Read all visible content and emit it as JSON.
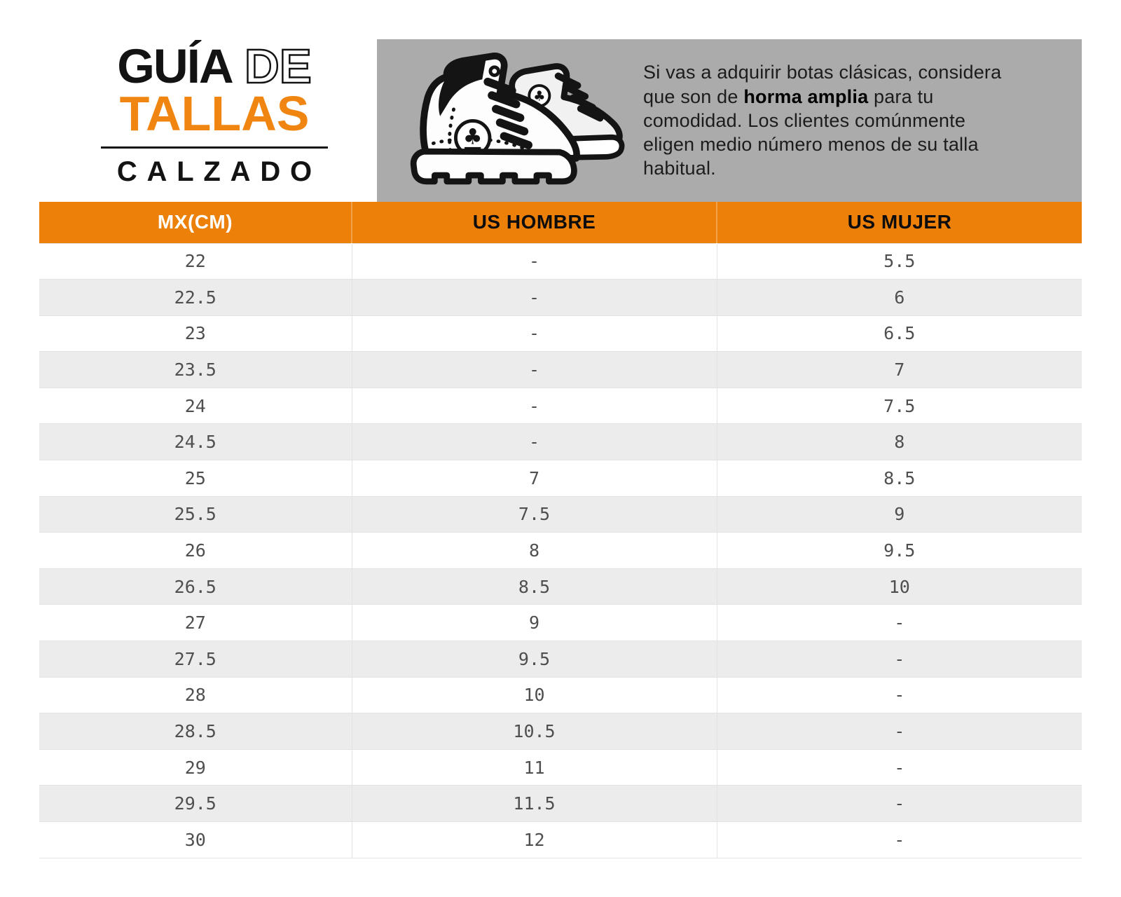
{
  "logo": {
    "word1": "GUÍA",
    "word2": "DE",
    "word3": "TALLAS",
    "word4": "CALZADO"
  },
  "banner": {
    "text_before": "Si vas a adquirir botas clásicas, considera que son de ",
    "text_bold": "horma amplia",
    "text_after": " para tu comodidad. Los clientes comúnmente eligen medio número menos de su talla habitual."
  },
  "icons": {
    "boots": "boots-icon",
    "tree_logo": "tree-logo-icon"
  },
  "table": {
    "headers": [
      "MX(CM)",
      "US HOMBRE",
      "US MUJER"
    ],
    "rows": [
      [
        "22",
        "-",
        "5.5"
      ],
      [
        "22.5",
        "-",
        "6"
      ],
      [
        "23",
        "-",
        "6.5"
      ],
      [
        "23.5",
        "-",
        "7"
      ],
      [
        "24",
        "-",
        "7.5"
      ],
      [
        "24.5",
        "-",
        "8"
      ],
      [
        "25",
        "7",
        "8.5"
      ],
      [
        "25.5",
        "7.5",
        "9"
      ],
      [
        "26",
        "8",
        "9.5"
      ],
      [
        "26.5",
        "8.5",
        "10"
      ],
      [
        "27",
        "9",
        "-"
      ],
      [
        "27.5",
        "9.5",
        "-"
      ],
      [
        "28",
        "10",
        "-"
      ],
      [
        "28.5",
        "10.5",
        "-"
      ],
      [
        "29",
        "11",
        "-"
      ],
      [
        "29.5",
        "11.5",
        "-"
      ],
      [
        "30",
        "12",
        "-"
      ]
    ]
  },
  "colors": {
    "accent_orange": "#ec8008",
    "logo_orange": "#f08611",
    "banner_gray": "#ababab",
    "row_alt_gray": "#ececec",
    "row_line": "#e3e3e3",
    "cell_text": "#4f4f4f",
    "ink": "#131313"
  }
}
